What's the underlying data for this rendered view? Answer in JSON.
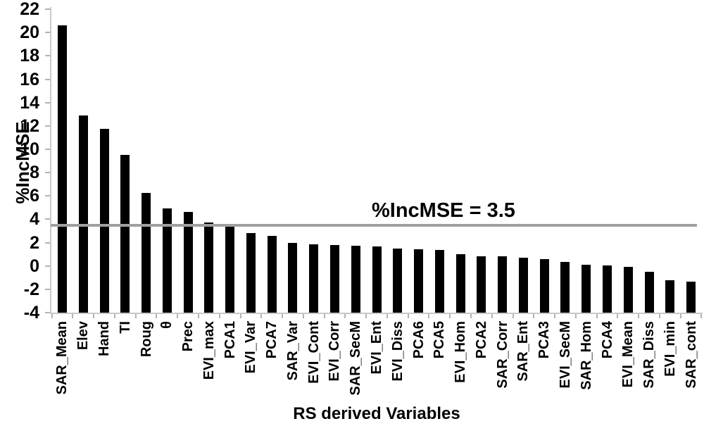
{
  "chart_data": {
    "type": "bar",
    "title": "",
    "xlabel": "RS derived Variables",
    "ylabel": "%IncMSE",
    "ylim": [
      -4,
      22
    ],
    "y_ticks": [
      22,
      20,
      18,
      16,
      14,
      12,
      10,
      8,
      6,
      4,
      2,
      0,
      -2,
      -4
    ],
    "grid": false,
    "legend": "none",
    "bar_color": "#000000",
    "bars_drawn_from_baseline": -4,
    "reference_line": {
      "value": 3.5,
      "label": "%IncMSE = 3.5",
      "color": "#a0a0a0"
    },
    "categories": [
      "SAR_Mean",
      "Elev",
      "Hand",
      "TI",
      "Roug",
      "θ",
      "Prec",
      "EVI_max",
      "PCA1",
      "EVI_Var",
      "PCA7",
      "SAR_Var",
      "EVI_Cont",
      "EVI_Corr",
      "SAR_SecM",
      "EVI_Ent",
      "EVI_Diss",
      "PCA6",
      "PCA5",
      "EVI_Hom",
      "PCA2",
      "SAR_Corr",
      "SAR_Ent",
      "PCA3",
      "EVI_SecM",
      "SAR_Hom",
      "PCA4",
      "EVI_Mean",
      "SAR_Diss",
      "EVI_min",
      "SAR_cont"
    ],
    "values": [
      20.6,
      12.9,
      11.75,
      9.5,
      6.25,
      4.9,
      4.6,
      3.7,
      3.6,
      2.8,
      2.55,
      2.0,
      1.85,
      1.8,
      1.75,
      1.7,
      1.5,
      1.4,
      1.35,
      1.0,
      0.85,
      0.8,
      0.7,
      0.6,
      0.35,
      0.1,
      0.05,
      -0.1,
      -0.5,
      -1.2,
      -1.35
    ]
  },
  "colors": {
    "bar": "#000000",
    "reference_line": "#a0a0a0",
    "axis_line": "#c9c9c9",
    "tick_mark": "#b3b3b3",
    "text": "#000000",
    "background": "#ffffff"
  }
}
